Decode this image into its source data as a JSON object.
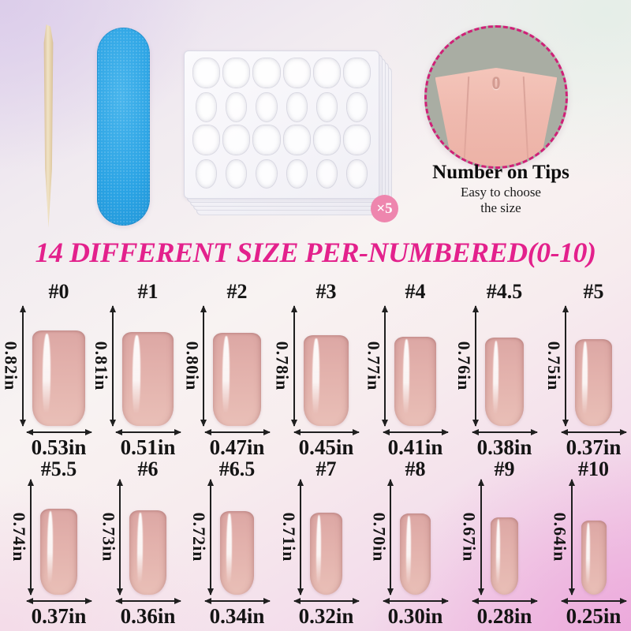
{
  "headline": {
    "text": "14 DIFFERENT SIZE PER-NUMBERED(0-10)"
  },
  "top_tools": {
    "stick_icon": "wooden-cuticle-stick",
    "file_icon": "blue-nail-file",
    "sheets_icon": "adhesive-tab-sticker-sheets",
    "sticker_count": "×5"
  },
  "tip_callout": {
    "tip_number": "0",
    "title": "Number on Tips",
    "subtitle_line1": "Easy to choose",
    "subtitle_line2": "the size"
  },
  "size_chart": {
    "unit": "in",
    "rows": [
      {
        "cells": [
          {
            "label": "#0",
            "height": "0.82in",
            "width": "0.53in",
            "h": 0.82,
            "w": 0.53
          },
          {
            "label": "#1",
            "height": "0.81in",
            "width": "0.51in",
            "h": 0.81,
            "w": 0.51
          },
          {
            "label": "#2",
            "height": "0.80in",
            "width": "0.47in",
            "h": 0.8,
            "w": 0.47
          },
          {
            "label": "#3",
            "height": "0.78in",
            "width": "0.45in",
            "h": 0.78,
            "w": 0.45
          },
          {
            "label": "#4",
            "height": "0.77in",
            "width": "0.41in",
            "h": 0.77,
            "w": 0.41
          },
          {
            "label": "#4.5",
            "height": "0.76in",
            "width": "0.38in",
            "h": 0.76,
            "w": 0.38
          },
          {
            "label": "#5",
            "height": "0.75in",
            "width": "0.37in",
            "h": 0.75,
            "w": 0.37
          }
        ]
      },
      {
        "cells": [
          {
            "label": "#5.5",
            "height": "0.74in",
            "width": "0.37in",
            "h": 0.74,
            "w": 0.37
          },
          {
            "label": "#6",
            "height": "0.73in",
            "width": "0.36in",
            "h": 0.73,
            "w": 0.36
          },
          {
            "label": "#6.5",
            "height": "0.72in",
            "width": "0.34in",
            "h": 0.72,
            "w": 0.34
          },
          {
            "label": "#7",
            "height": "0.71in",
            "width": "0.32in",
            "h": 0.71,
            "w": 0.32
          },
          {
            "label": "#8",
            "height": "0.70in",
            "width": "0.30in",
            "h": 0.7,
            "w": 0.3
          },
          {
            "label": "#9",
            "height": "0.67in",
            "width": "0.28in",
            "h": 0.67,
            "w": 0.28
          },
          {
            "label": "#10",
            "height": "0.64in",
            "width": "0.25in",
            "h": 0.64,
            "w": 0.25
          }
        ]
      }
    ]
  },
  "colors": {
    "headline": "#e3218c",
    "badge_pink": "#ee86ae",
    "circle_border": "#cf2077",
    "nail_pink": "#e2b0ab",
    "file_blue": "#2aa3e4"
  }
}
